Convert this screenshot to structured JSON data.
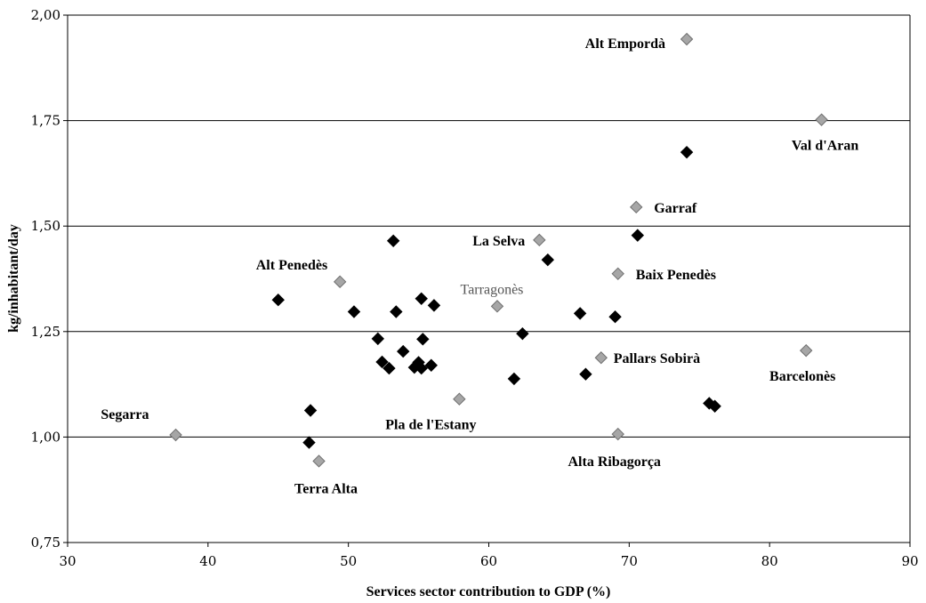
{
  "chart_data": {
    "type": "scatter",
    "xlabel": "Services sector contribution to GDP (%)",
    "ylabel": "kg/inhabitant/day",
    "xlim": [
      30,
      90
    ],
    "ylim": [
      0.75,
      2.0
    ],
    "x_ticks": [
      30,
      40,
      50,
      60,
      70,
      80,
      90
    ],
    "x_tick_labels": [
      "30",
      "40",
      "50",
      "60",
      "70",
      "80",
      "90"
    ],
    "y_ticks": [
      0.75,
      1.0,
      1.25,
      1.5,
      1.75,
      2.0
    ],
    "y_tick_labels": [
      "0,75",
      "1,00",
      "1,25",
      "1,50",
      "1,75",
      "2,00"
    ],
    "grid": "horizontal",
    "series": [
      {
        "marker": "diamond",
        "color": "#000000",
        "points": [
          {
            "x": 45.0,
            "y": 1.325
          },
          {
            "x": 47.3,
            "y": 1.063
          },
          {
            "x": 47.2,
            "y": 0.987
          },
          {
            "x": 50.4,
            "y": 1.297
          },
          {
            "x": 52.1,
            "y": 1.233
          },
          {
            "x": 52.4,
            "y": 1.178
          },
          {
            "x": 52.9,
            "y": 1.163
          },
          {
            "x": 53.2,
            "y": 1.465
          },
          {
            "x": 53.4,
            "y": 1.297
          },
          {
            "x": 53.9,
            "y": 1.203
          },
          {
            "x": 54.7,
            "y": 1.165
          },
          {
            "x": 55.0,
            "y": 1.177
          },
          {
            "x": 55.2,
            "y": 1.163
          },
          {
            "x": 55.2,
            "y": 1.328
          },
          {
            "x": 55.3,
            "y": 1.232
          },
          {
            "x": 55.9,
            "y": 1.17
          },
          {
            "x": 56.1,
            "y": 1.312
          },
          {
            "x": 61.8,
            "y": 1.138
          },
          {
            "x": 62.4,
            "y": 1.245
          },
          {
            "x": 64.2,
            "y": 1.42
          },
          {
            "x": 66.5,
            "y": 1.293
          },
          {
            "x": 66.9,
            "y": 1.149
          },
          {
            "x": 69.0,
            "y": 1.285
          },
          {
            "x": 70.6,
            "y": 1.478
          },
          {
            "x": 74.1,
            "y": 1.675
          },
          {
            "x": 75.7,
            "y": 1.08
          },
          {
            "x": 76.1,
            "y": 1.073
          }
        ]
      },
      {
        "marker": "diamond",
        "color": "#a6a6a6",
        "points": [
          {
            "x": 37.7,
            "y": 1.005,
            "label": "Segarra"
          },
          {
            "x": 47.9,
            "y": 0.943,
            "label": "Terra Alta"
          },
          {
            "x": 49.4,
            "y": 1.368,
            "label": "Alt Penedès"
          },
          {
            "x": 57.9,
            "y": 1.09,
            "label": "Pla de l'Estany"
          },
          {
            "x": 60.6,
            "y": 1.31,
            "label": "Tarragonès"
          },
          {
            "x": 63.6,
            "y": 1.467,
            "label": "La Selva"
          },
          {
            "x": 68.0,
            "y": 1.188,
            "label": "Pallars Sobirà"
          },
          {
            "x": 69.2,
            "y": 1.007,
            "label": "Alta Ribagorça"
          },
          {
            "x": 69.2,
            "y": 1.387,
            "label": "Baix Penedès"
          },
          {
            "x": 70.5,
            "y": 1.545,
            "label": "Garraf"
          },
          {
            "x": 74.1,
            "y": 1.943,
            "label": "Alt Empordà"
          },
          {
            "x": 82.6,
            "y": 1.205,
            "label": "Barcelonès"
          },
          {
            "x": 83.7,
            "y": 1.752,
            "label": "Val d'Aran"
          }
        ]
      }
    ]
  }
}
